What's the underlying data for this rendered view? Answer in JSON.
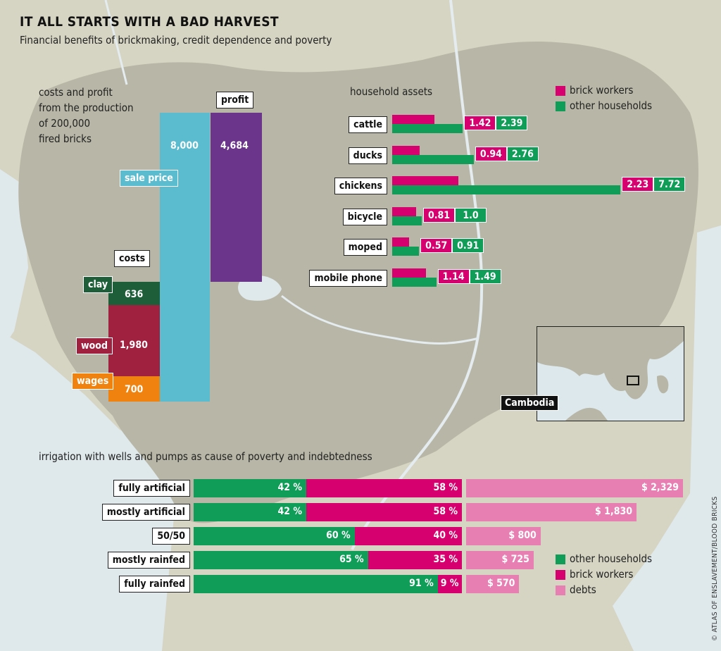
{
  "title": "IT ALL STARTS WITH A BAD HARVEST",
  "subtitle": "Financial benefits of brickmaking, credit dependence and poverty",
  "credit": "© ATLAS OF ENSLAVEMENT/BLOOD BRICKS",
  "map_label": "Cambodia",
  "colors": {
    "other_households": "#0f9d58",
    "brick_workers": "#d6006f",
    "debts": "#e87fb3",
    "sale_price": "#5bbcd0",
    "profit": "#6a358b",
    "clay": "#1e5f3a",
    "wood": "#a0203f",
    "wages": "#f0830f",
    "land": "#b8b6a6",
    "water": "#dfe9ec"
  },
  "chart_data": [
    {
      "type": "bar",
      "title": "costs and profit from the production of 200,000 fired bricks",
      "caption_lines": [
        "costs and profit",
        "from the production",
        "of 200,000",
        "fired bricks"
      ],
      "costs_label": "costs",
      "costs": [
        {
          "name": "wages",
          "value": 700,
          "label": "700"
        },
        {
          "name": "wood",
          "value": 1980,
          "label": "1,980"
        },
        {
          "name": "clay",
          "value": 636,
          "label": "636"
        }
      ],
      "sale_price": {
        "name": "sale price",
        "value": 8000,
        "label": "8,000"
      },
      "profit": {
        "name": "profit",
        "value": 4684,
        "label": "4,684"
      }
    },
    {
      "type": "bar",
      "title": "household assets",
      "series": [
        {
          "name": "brick workers",
          "values": [
            1.42,
            0.94,
            2.23,
            0.81,
            0.57,
            1.14
          ],
          "labels": [
            "1.42",
            "0.94",
            "2.23",
            "0.81",
            "0.57",
            "1.14"
          ]
        },
        {
          "name": "other households",
          "values": [
            2.39,
            2.76,
            7.72,
            1.0,
            0.91,
            1.49
          ],
          "labels": [
            "2.39",
            "2.76",
            "7.72",
            "1.0",
            "0.91",
            "1.49"
          ]
        }
      ],
      "categories": [
        "cattle",
        "ducks",
        "chickens",
        "bicycle",
        "moped",
        "mobile phone"
      ]
    },
    {
      "type": "bar",
      "title": "irrigation with wells and pumps as cause of poverty and indebtedness",
      "categories": [
        "fully artificial",
        "mostly artificial",
        "50/50",
        "mostly rainfed",
        "fully rainfed"
      ],
      "series": [
        {
          "name": "other households",
          "values": [
            42,
            42,
            60,
            65,
            91
          ],
          "labels": [
            "42 %",
            "42 %",
            "60 %",
            "65 %",
            "91 %"
          ]
        },
        {
          "name": "brick workers",
          "values": [
            58,
            58,
            40,
            35,
            9
          ],
          "labels": [
            "58 %",
            "58 %",
            "40 %",
            "35 %",
            "9 %"
          ]
        },
        {
          "name": "debts",
          "values": [
            2329,
            1830,
            800,
            725,
            570
          ],
          "labels": [
            "$ 2,329",
            "$ 1,830",
            "$ 800",
            "$ 725",
            "$ 570"
          ]
        }
      ],
      "legend": [
        "other households",
        "brick workers",
        "debts"
      ]
    }
  ]
}
